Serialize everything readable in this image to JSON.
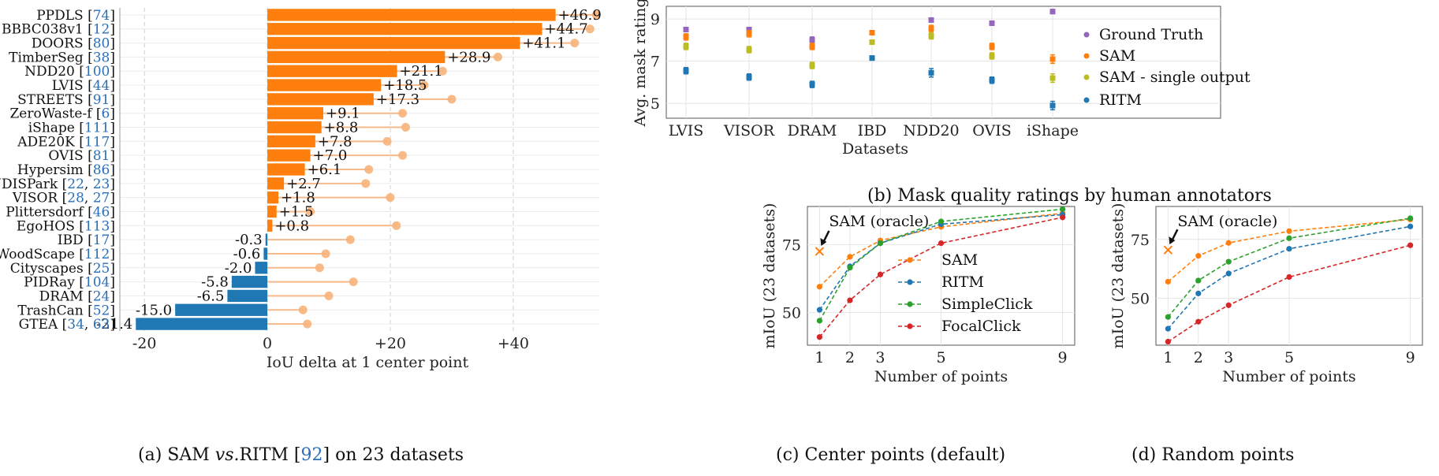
{
  "captions": {
    "a_prefix": "(a) SAM",
    "a_vs": "vs.",
    "a_mid": "RITM [",
    "a_ref": "92",
    "a_suffix": "] on 23 datasets",
    "b": "(b) Mask quality ratings by human annotators",
    "c": "(c) Center points (default)",
    "d": "(d) Random points"
  },
  "colors": {
    "pos": "#ff7f0e",
    "neg": "#1f77b4",
    "sam": "#ff7f0e",
    "ritm": "#1f77b4",
    "simpleclick": "#2ca02c",
    "focalclick": "#d62728",
    "gt": "#9467bd",
    "sam_single": "#bcbd22",
    "ref": "#2a6fb8"
  },
  "chart_data": [
    {
      "type": "bar",
      "orientation": "horizontal",
      "xlabel": "IoU delta at 1 center point",
      "xlim": [
        -24,
        54
      ],
      "xticks": [
        "-20",
        "0",
        "+20",
        "+40"
      ],
      "xtick_values": [
        -20,
        0,
        20,
        40
      ],
      "categories": [
        {
          "name": "PPDLS",
          "refs": [
            "74"
          ]
        },
        {
          "name": "BBBC038v1",
          "refs": [
            "12"
          ]
        },
        {
          "name": "DOORS",
          "refs": [
            "80"
          ]
        },
        {
          "name": "TimberSeg",
          "refs": [
            "38"
          ]
        },
        {
          "name": "NDD20",
          "refs": [
            "100"
          ]
        },
        {
          "name": "LVIS",
          "refs": [
            "44"
          ]
        },
        {
          "name": "STREETS",
          "refs": [
            "91"
          ]
        },
        {
          "name": "ZeroWaste-f",
          "refs": [
            "6"
          ]
        },
        {
          "name": "iShape",
          "refs": [
            "111"
          ]
        },
        {
          "name": "ADE20K",
          "refs": [
            "117"
          ]
        },
        {
          "name": "OVIS",
          "refs": [
            "81"
          ]
        },
        {
          "name": "Hypersim",
          "refs": [
            "86"
          ]
        },
        {
          "name": "NDISPark",
          "refs": [
            "22",
            "23"
          ]
        },
        {
          "name": "VISOR",
          "refs": [
            "28",
            "27"
          ]
        },
        {
          "name": "Plittersdorf",
          "refs": [
            "46"
          ]
        },
        {
          "name": "EgoHOS",
          "refs": [
            "113"
          ]
        },
        {
          "name": "IBD",
          "refs": [
            "17"
          ]
        },
        {
          "name": "WoodScape",
          "refs": [
            "112"
          ]
        },
        {
          "name": "Cityscapes",
          "refs": [
            "25"
          ]
        },
        {
          "name": "PIDRay",
          "refs": [
            "104"
          ]
        },
        {
          "name": "DRAM",
          "refs": [
            "24"
          ]
        },
        {
          "name": "TrashCan",
          "refs": [
            "52"
          ]
        },
        {
          "name": "GTEA",
          "refs": [
            "34",
            "63"
          ]
        }
      ],
      "values": [
        46.9,
        44.7,
        41.1,
        28.9,
        21.1,
        18.5,
        17.3,
        9.1,
        8.8,
        7.8,
        7.0,
        6.1,
        2.7,
        1.8,
        1.5,
        0.8,
        -0.3,
        -0.6,
        -2.0,
        -5.8,
        -6.5,
        -15.0,
        -21.4
      ],
      "value_labels": [
        "+46.9",
        "+44.7",
        "+41.1",
        "+28.9",
        "+21.1",
        "+18.5",
        "+17.3",
        "+9.1",
        "+8.8",
        "+7.8",
        "+7.0",
        "+6.1",
        "+2.7",
        "+1.8",
        "+1.5",
        "+0.8",
        "-0.3",
        "-0.6",
        "-2.0",
        "-5.8",
        "-6.5",
        "-15.0",
        "-21.4"
      ],
      "marker_values": [
        53.5,
        52.5,
        50.0,
        37.5,
        28.5,
        25.5,
        30.0,
        22.0,
        22.5,
        19.5,
        22.0,
        16.5,
        16.0,
        20.0,
        7.0,
        21.0,
        13.5,
        9.5,
        8.5,
        14.0,
        10.0,
        5.8,
        6.5
      ],
      "grid": true
    },
    {
      "type": "scatter",
      "ylabel": "Avg. mask rating",
      "xlabel": "Datasets",
      "categories": [
        "LVIS",
        "VISOR",
        "DRAM",
        "IBD",
        "NDD20",
        "OVIS",
        "iShape"
      ],
      "ylim": [
        4.3,
        9.6
      ],
      "yticks": [
        5,
        7,
        9
      ],
      "legend": "right",
      "series": [
        {
          "name": "Ground Truth",
          "values": [
            8.5,
            8.5,
            8.0,
            8.35,
            8.95,
            8.8,
            9.35
          ],
          "err": [
            0.1,
            0.1,
            0.15,
            0.1,
            0.1,
            0.1,
            0.1
          ]
        },
        {
          "name": "SAM",
          "values": [
            8.15,
            8.3,
            7.7,
            8.35,
            8.55,
            7.7,
            7.1
          ],
          "err": [
            0.15,
            0.15,
            0.15,
            0.1,
            0.15,
            0.15,
            0.2
          ]
        },
        {
          "name": "SAM - single output",
          "values": [
            7.7,
            7.55,
            6.8,
            7.9,
            8.2,
            7.25,
            6.2
          ],
          "err": [
            0.15,
            0.15,
            0.15,
            0.1,
            0.15,
            0.15,
            0.2
          ]
        },
        {
          "name": "RITM",
          "values": [
            6.55,
            6.25,
            5.9,
            7.15,
            6.45,
            6.1,
            4.9
          ],
          "err": [
            0.15,
            0.15,
            0.15,
            0.1,
            0.2,
            0.15,
            0.2
          ]
        }
      ],
      "grid": true
    },
    {
      "type": "line",
      "ylabel": "mIoU (23 datasets)",
      "xlabel": "Number of points",
      "x": [
        1,
        2,
        3,
        5,
        9
      ],
      "xlim": [
        0.6,
        9.4
      ],
      "ylim": [
        38,
        89
      ],
      "yticks": [
        50,
        75
      ],
      "annotation": "SAM (oracle)",
      "oracle": {
        "x": 1,
        "y": 72.5
      },
      "legend": "center",
      "series": [
        {
          "name": "SAM",
          "values": [
            59.5,
            70.5,
            76.5,
            81.5,
            86.5
          ]
        },
        {
          "name": "RITM",
          "values": [
            51,
            67,
            75.5,
            82.5,
            86
          ]
        },
        {
          "name": "SimpleClick",
          "values": [
            47,
            66.5,
            75.5,
            83.5,
            88
          ]
        },
        {
          "name": "FocalClick",
          "values": [
            41,
            54.5,
            64,
            75.5,
            85
          ]
        }
      ],
      "grid": true
    },
    {
      "type": "line",
      "ylabel": "mIoU (23 datasets)",
      "xlabel": "Number of points",
      "x": [
        1,
        2,
        3,
        5,
        9
      ],
      "xlim": [
        0.6,
        9.4
      ],
      "ylim": [
        30,
        89
      ],
      "yticks": [
        50,
        75
      ],
      "annotation": "SAM (oracle)",
      "oracle": {
        "x": 1,
        "y": 70.5
      },
      "series": [
        {
          "name": "SAM",
          "values": [
            57,
            68,
            73.5,
            78.5,
            83.5
          ]
        },
        {
          "name": "RITM",
          "values": [
            37,
            52,
            60.5,
            71,
            80.5
          ]
        },
        {
          "name": "SimpleClick",
          "values": [
            42,
            57.5,
            65.5,
            75.5,
            84
          ]
        },
        {
          "name": "FocalClick",
          "values": [
            31.5,
            40,
            47,
            59,
            72.5
          ]
        }
      ],
      "grid": true
    }
  ]
}
